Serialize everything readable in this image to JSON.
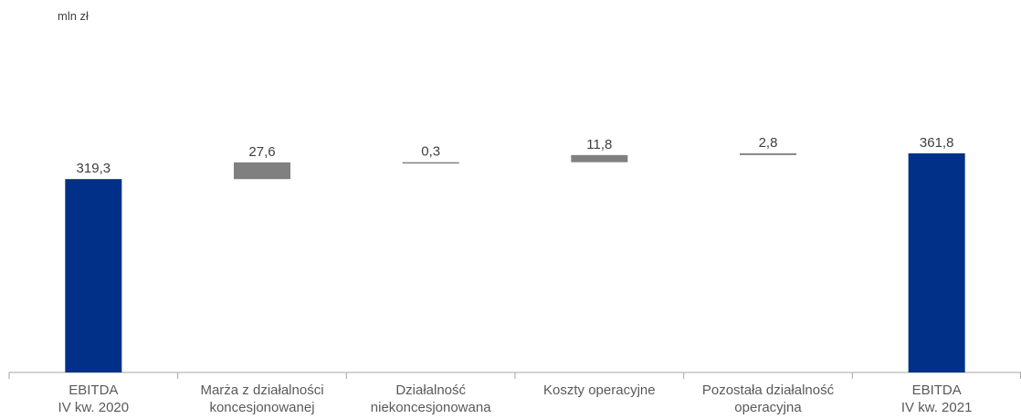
{
  "unit_label": "mln zł",
  "colors": {
    "total": "#003087",
    "delta": "#808080",
    "axis": "#a6a6a6"
  },
  "chart_data": {
    "type": "bar",
    "subtype": "waterfall",
    "ylabel": "mln zł",
    "categories": [
      [
        "EBITDA",
        "IV kw. 2020"
      ],
      [
        "Marża z działalności",
        "koncesjonowanej"
      ],
      [
        "Działalność",
        "niekoncesjonowana"
      ],
      [
        "Koszty operacyjne"
      ],
      [
        "Pozostała działalność",
        "operacyjna"
      ],
      [
        "EBITDA",
        "IV kw. 2021"
      ]
    ],
    "values": [
      319.3,
      27.6,
      0.3,
      11.8,
      2.8,
      361.8
    ],
    "labels": [
      "319,3",
      "27,6",
      "0,3",
      "11,8",
      "2,8",
      "361,8"
    ],
    "kinds": [
      "total",
      "delta",
      "delta",
      "delta",
      "delta",
      "total"
    ],
    "grid": false,
    "legend": "none"
  }
}
